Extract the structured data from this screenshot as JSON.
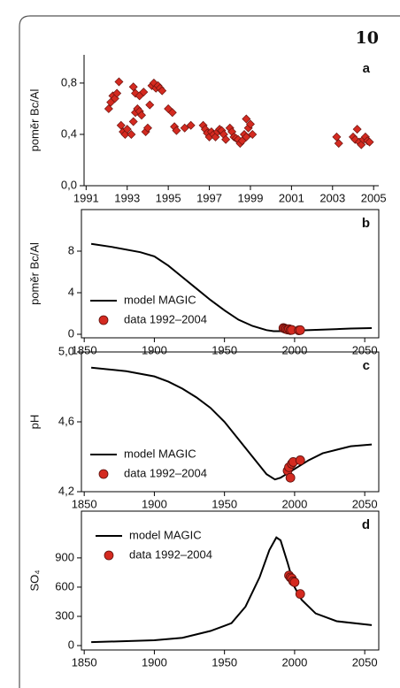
{
  "page_number": "10",
  "chart_data": [
    {
      "type": "scatter",
      "ylabel": "poměr Bc/Al",
      "annotation": "a",
      "color": "#d42a20",
      "marker": "diamond",
      "x": [
        1992.1,
        1992.2,
        1992.3,
        1992.4,
        1992.5,
        1992.6,
        1992.7,
        1992.8,
        1992.9,
        1993.0,
        1993.2,
        1993.3,
        1993.4,
        1993.3,
        1993.4,
        1993.5,
        1993.6,
        1993.7,
        1993.6,
        1993.8,
        1993.9,
        1994.0,
        1994.1,
        1994.2,
        1994.3,
        1994.4,
        1994.5,
        1994.6,
        1994.7,
        1995.0,
        1995.2,
        1995.3,
        1995.4,
        1995.8,
        1996.1,
        1996.7,
        1996.8,
        1996.9,
        1997.0,
        1997.1,
        1997.2,
        1997.3,
        1997.4,
        1997.5,
        1997.6,
        1997.7,
        1997.8,
        1998.0,
        1998.1,
        1998.2,
        1998.3,
        1998.4,
        1998.5,
        1998.6,
        1998.7,
        1998.8,
        1998.9,
        1998.8,
        1999.0,
        1999.1,
        2003.2,
        2003.3,
        2004.0,
        2004.1,
        2004.2,
        2004.3,
        2004.4,
        2004.5,
        2004.6,
        2004.7,
        2004.8
      ],
      "values": [
        0.6,
        0.65,
        0.7,
        0.68,
        0.72,
        0.81,
        0.47,
        0.42,
        0.4,
        0.44,
        0.4,
        0.5,
        0.57,
        0.77,
        0.72,
        0.6,
        0.58,
        0.55,
        0.7,
        0.73,
        0.42,
        0.45,
        0.63,
        0.78,
        0.8,
        0.76,
        0.78,
        0.76,
        0.74,
        0.6,
        0.57,
        0.46,
        0.43,
        0.45,
        0.47,
        0.47,
        0.44,
        0.41,
        0.38,
        0.42,
        0.4,
        0.38,
        0.42,
        0.44,
        0.43,
        0.4,
        0.36,
        0.45,
        0.42,
        0.38,
        0.37,
        0.36,
        0.33,
        0.35,
        0.4,
        0.38,
        0.45,
        0.52,
        0.48,
        0.4,
        0.38,
        0.33,
        0.38,
        0.36,
        0.44,
        0.34,
        0.32,
        0.36,
        0.38,
        0.35,
        0.34
      ],
      "xlim": [
        1990.9,
        2005.25
      ],
      "xticks": [
        1991,
        1993,
        1995,
        1997,
        1999,
        2001,
        2003,
        2005
      ],
      "ylim": [
        0,
        1.02
      ],
      "yticks": [
        {
          "value": 0,
          "label": "0,0"
        },
        {
          "value": 0.4,
          "label": "0,4"
        },
        {
          "value": 0.8,
          "label": "0,8"
        }
      ],
      "box": false
    },
    {
      "type": "line",
      "ylabel": "poměr Bc/Al",
      "annotation": "b",
      "legend": "lower left",
      "box": true,
      "xlim": [
        1848,
        2060
      ],
      "xticks": [
        1850,
        1900,
        1950,
        2000,
        2050
      ],
      "ylim": [
        -0.34,
        12
      ],
      "yticks": [
        0,
        4,
        8
      ],
      "series": [
        {
          "name": "model MAGIC",
          "color": "#000000",
          "style": "line",
          "x": [
            1855,
            1870,
            1890,
            1900,
            1910,
            1920,
            1930,
            1940,
            1950,
            1960,
            1970,
            1980,
            1985,
            1990,
            2000,
            2020,
            2040,
            2055
          ],
          "values": [
            8.7,
            8.4,
            7.9,
            7.5,
            6.6,
            5.5,
            4.4,
            3.3,
            2.3,
            1.4,
            0.8,
            0.4,
            0.3,
            0.3,
            0.35,
            0.45,
            0.55,
            0.6
          ]
        },
        {
          "name": "data 1992–2004",
          "color": "#d42a20",
          "style": "markers",
          "x": [
            1992,
            1993,
            1994,
            1995,
            1996,
            1997,
            1998,
            2003,
            2004
          ],
          "values": [
            0.6,
            0.55,
            0.5,
            0.45,
            0.5,
            0.4,
            0.42,
            0.38,
            0.4
          ]
        }
      ]
    },
    {
      "type": "line",
      "ylabel": "pH",
      "annotation": "c",
      "legend": "lower left",
      "box": true,
      "xlim": [
        1848,
        2060
      ],
      "xticks": [
        1850,
        1900,
        1950,
        2000,
        2050
      ],
      "ylim": [
        4.2,
        5.0
      ],
      "yticks": [
        {
          "value": 4.2,
          "label": "4,2"
        },
        {
          "value": 4.6,
          "label": "4,6"
        },
        {
          "value": 5.0,
          "label": "5,0"
        }
      ],
      "series": [
        {
          "name": "model MAGIC",
          "color": "#000000",
          "style": "line",
          "x": [
            1855,
            1880,
            1900,
            1910,
            1920,
            1930,
            1940,
            1950,
            1960,
            1970,
            1980,
            1986,
            1990,
            2000,
            2010,
            2020,
            2040,
            2055
          ],
          "values": [
            4.91,
            4.89,
            4.86,
            4.83,
            4.79,
            4.74,
            4.68,
            4.6,
            4.5,
            4.4,
            4.3,
            4.27,
            4.28,
            4.33,
            4.38,
            4.42,
            4.46,
            4.47
          ]
        },
        {
          "name": "data 1992–2004",
          "color": "#d42a20",
          "style": "markers",
          "x": [
            1995,
            1996,
            1997,
            1998,
            1999,
            2004
          ],
          "values": [
            4.32,
            4.34,
            4.28,
            4.36,
            4.37,
            4.38
          ]
        }
      ]
    },
    {
      "type": "line",
      "ylabel": "SO₄",
      "annotation": "d",
      "legend": "upper left",
      "box": true,
      "xlim": [
        1848,
        2060
      ],
      "xticks": [
        1850,
        1900,
        1950,
        2000,
        2050
      ],
      "ylim": [
        -45,
        1380
      ],
      "yticks": [
        0,
        300,
        600,
        900
      ],
      "series": [
        {
          "name": "model MAGIC",
          "color": "#000000",
          "style": "line",
          "x": [
            1855,
            1900,
            1920,
            1940,
            1955,
            1965,
            1975,
            1982,
            1987,
            1990,
            1995,
            2000,
            2005,
            2015,
            2030,
            2055
          ],
          "values": [
            35,
            55,
            80,
            150,
            230,
            400,
            700,
            980,
            1110,
            1080,
            850,
            600,
            470,
            330,
            250,
            210
          ]
        },
        {
          "name": "data 1992–2004",
          "color": "#d42a20",
          "style": "markers",
          "x": [
            1996,
            1997,
            1998,
            1999,
            2000,
            2004
          ],
          "values": [
            720,
            700,
            690,
            660,
            650,
            530
          ]
        }
      ]
    }
  ]
}
